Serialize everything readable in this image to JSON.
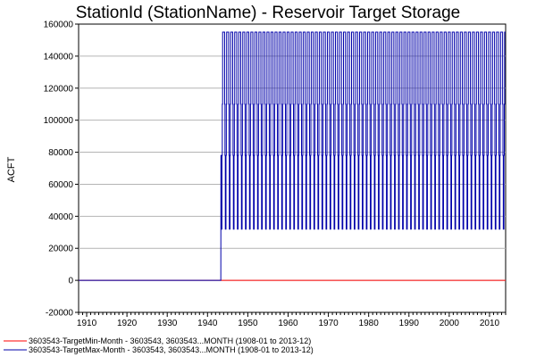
{
  "chart_data": {
    "type": "line",
    "title": "StationId (StationName) - Reservoir Target Storage",
    "xlabel": "",
    "ylabel": "ACFT",
    "xlim": [
      1908,
      2014
    ],
    "ylim": [
      -20000,
      160000
    ],
    "x_ticks": [
      "1910",
      "1920",
      "1930",
      "1940",
      "1950",
      "1960",
      "1970",
      "1980",
      "1990",
      "2000",
      "2010"
    ],
    "y_ticks": [
      "-20000",
      "0",
      "20000",
      "40000",
      "60000",
      "80000",
      "100000",
      "120000",
      "140000",
      "160000"
    ],
    "grid": "horizontal",
    "legend_position": "bottom-left",
    "series": [
      {
        "name": "3603543-TargetMin-Month - 3603543, 3603543...MONTH (1908-01 to 2013-12)",
        "color": "#ff0000",
        "pattern": {
          "start_year": 1908,
          "end_year": 2014,
          "constant": 0
        }
      },
      {
        "name": "3603543-TargetMax-Month - 3603543, 3603543...MONTH (1908-01 to 2013-12)",
        "color": "#0000aa",
        "pattern": {
          "zero_until_year": 1943.3,
          "end_year": 2014,
          "monthly_cycle": [
            155000,
            155000,
            155000,
            110000,
            78000,
            32000,
            32000,
            78000,
            110000,
            155000,
            155000,
            155000
          ]
        }
      }
    ]
  }
}
